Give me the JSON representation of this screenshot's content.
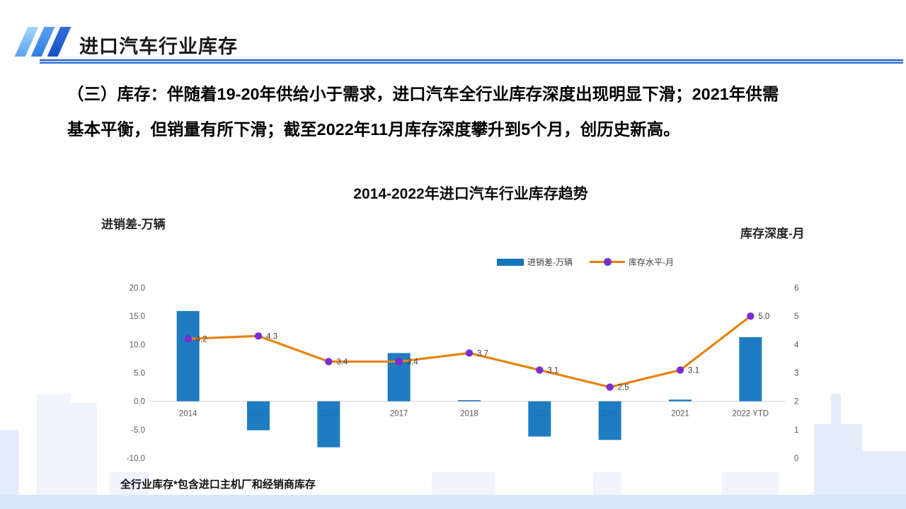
{
  "header": {
    "title": "进口汽车行业库存"
  },
  "body_text": {
    "lines": [
      "（三）库存：伴随着19-20年供给小于需求，进口汽车全行业库存深度出现明显下滑；2021年供需",
      "基本平衡，但销量有所下滑；截至2022年11月库存深度攀升到5个月，创历史新高。"
    ]
  },
  "chart_data": {
    "type": "bar",
    "subtype": "combo-bar-line",
    "title": "2014-2022年进口汽车行业库存趋势",
    "categories": [
      "2014",
      "2015",
      "2016",
      "2017",
      "2018",
      "2019",
      "2020",
      "2021",
      "2022 YTD"
    ],
    "series": [
      {
        "name": "进销差-万辆",
        "type": "bar",
        "axis": "left",
        "values": [
          15.9,
          -5.1,
          -8.1,
          8.5,
          0.2,
          -6.2,
          -6.8,
          0.3,
          11.3
        ],
        "color": "#1274bd"
      },
      {
        "name": "库存水平-月",
        "type": "line",
        "axis": "right",
        "values": [
          4.2,
          4.3,
          3.4,
          3.4,
          3.7,
          3.1,
          2.5,
          3.1,
          5.0
        ],
        "labels": [
          "4.2",
          "4.3",
          "3.4",
          "3.4",
          "3.7",
          "3.1",
          "2.5",
          "3.1",
          "5.0"
        ],
        "color": "#e8820d",
        "marker_color": "#7a2cd5"
      }
    ],
    "left_axis": {
      "title": "进销差-万辆",
      "min": -10,
      "max": 20,
      "ticks": [
        "20.0",
        "15.0",
        "10.0",
        "5.0",
        "0.0",
        "-5.0",
        "-10.0"
      ]
    },
    "right_axis": {
      "title": "库存深度-月",
      "min": 0,
      "max": 6,
      "ticks": [
        "6",
        "5",
        "4",
        "3",
        "2",
        "1",
        "0"
      ]
    },
    "legend_position": "top",
    "grid": false,
    "axis_line_color": "#d6d6d6"
  },
  "footnote": "全行业库存*包含进口主机厂和经销商库存",
  "colors": {
    "accent_blue": "#1652c8",
    "bar_blue": "#1274bd",
    "line_orange": "#e8820d",
    "marker_purple": "#7a2cd5"
  }
}
